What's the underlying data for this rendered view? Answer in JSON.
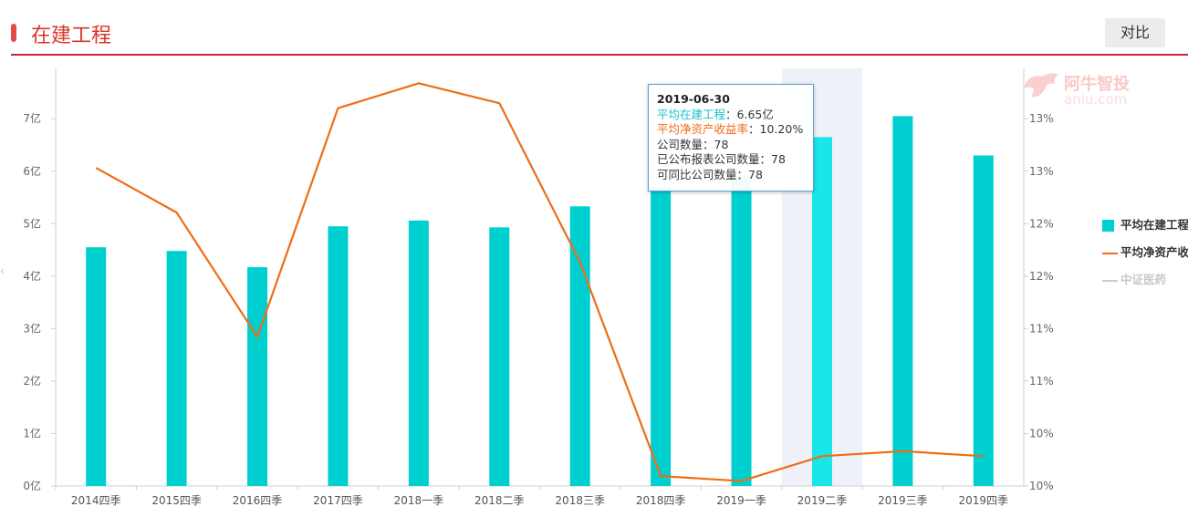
{
  "header": {
    "title": "在建工程",
    "compare_label": "对比"
  },
  "watermark": {
    "brand": "阿牛智投",
    "domain": "aniu.com"
  },
  "tooltip": {
    "date": "2019-06-30",
    "rows": [
      {
        "label": "平均在建工程",
        "value": "6.65亿"
      },
      {
        "label": "平均净资产收益率",
        "value": "10.20%"
      },
      {
        "label": "公司数量",
        "value": "78"
      },
      {
        "label": "已公布报表公司数量",
        "value": "78"
      },
      {
        "label": "可同比公司数量",
        "value": "78"
      }
    ]
  },
  "legend": [
    {
      "label": "平均在建工程",
      "type": "bar",
      "color": "#00cfd0"
    },
    {
      "label": "平均净资产收益率",
      "type": "line",
      "color": "#ee6d16"
    },
    {
      "label": "中证医药",
      "type": "line",
      "color": "#cccccc"
    }
  ],
  "chart_data": {
    "type": "bar",
    "categories": [
      "2014四季",
      "2015四季",
      "2016四季",
      "2017四季",
      "2018一季",
      "2018二季",
      "2018三季",
      "2018四季",
      "2019一季",
      "2019二季",
      "2019三季",
      "2019四季"
    ],
    "series": [
      {
        "name": "平均在建工程",
        "type": "bar",
        "axis": "left",
        "color": "#00cfd0",
        "values": [
          4.55,
          4.48,
          4.17,
          4.95,
          5.06,
          4.93,
          5.33,
          5.7,
          5.9,
          6.65,
          7.05,
          6.3
        ]
      },
      {
        "name": "平均净资产收益率",
        "type": "line",
        "axis": "right",
        "color": "#ee6d16",
        "values": [
          13.1,
          12.65,
          11.4,
          13.7,
          13.95,
          13.75,
          12.15,
          10.0,
          9.95,
          10.2,
          10.25,
          10.2
        ]
      }
    ],
    "left_axis": {
      "ticks": [
        "0亿",
        "1亿",
        "2亿",
        "3亿",
        "4亿",
        "5亿",
        "6亿",
        "7亿"
      ],
      "ylim": [
        0,
        7.96
      ]
    },
    "right_axis": {
      "ticks": [
        "10%",
        "10%",
        "11%",
        "11%",
        "12%",
        "12%",
        "13%",
        "13%"
      ],
      "ylim": [
        9.9,
        14.1
      ]
    },
    "highlight_index": 9,
    "grid": false
  }
}
